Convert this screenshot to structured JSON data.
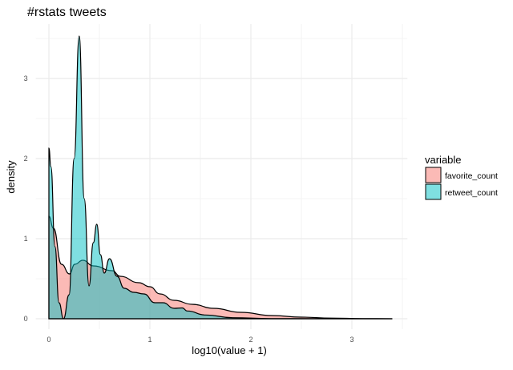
{
  "chart_data": {
    "type": "area",
    "title": "#rstats tweets",
    "xlabel": "log10(value + 1)",
    "ylabel": "density",
    "xlim": [
      -0.13,
      3.55
    ],
    "ylim": [
      -0.13,
      3.68
    ],
    "xticks": [
      0,
      1,
      2,
      3
    ],
    "yticks": [
      0,
      1,
      2,
      3
    ],
    "grid": true,
    "legend": {
      "title": "variable",
      "position": "right"
    },
    "series": [
      {
        "name": "favorite_count",
        "color": "#F8766D",
        "x": [
          0,
          0.045,
          0.125,
          0.204,
          0.256,
          0.336,
          0.44,
          0.627,
          0.706,
          0.89,
          1.0,
          1.1,
          1.24,
          1.42,
          1.63,
          1.9,
          2.21,
          2.5,
          2.8,
          3.1,
          3.4
        ],
        "y": [
          1.28,
          1.13,
          0.68,
          0.56,
          0.68,
          0.73,
          0.66,
          0.6,
          0.53,
          0.45,
          0.4,
          0.31,
          0.23,
          0.18,
          0.13,
          0.08,
          0.04,
          0.02,
          0.008,
          0.002,
          0
        ]
      },
      {
        "name": "retweet_count",
        "color": "#00BFC4",
        "x": [
          0,
          0.02,
          0.06,
          0.1,
          0.145,
          0.2,
          0.25,
          0.3,
          0.35,
          0.397,
          0.44,
          0.474,
          0.51,
          0.548,
          0.6,
          0.675,
          0.746,
          0.84,
          0.94,
          1.05,
          1.13,
          1.24,
          1.32,
          1.37,
          1.55,
          1.82,
          2.2,
          3.4
        ],
        "y": [
          2.13,
          1.9,
          0.9,
          0.2,
          0.0,
          0.3,
          2.0,
          3.53,
          1.5,
          0.41,
          0.95,
          1.18,
          0.8,
          0.57,
          0.75,
          0.53,
          0.38,
          0.33,
          0.31,
          0.2,
          0.2,
          0.13,
          0.135,
          0.097,
          0.047,
          0.013,
          0.002,
          0
        ]
      }
    ]
  }
}
